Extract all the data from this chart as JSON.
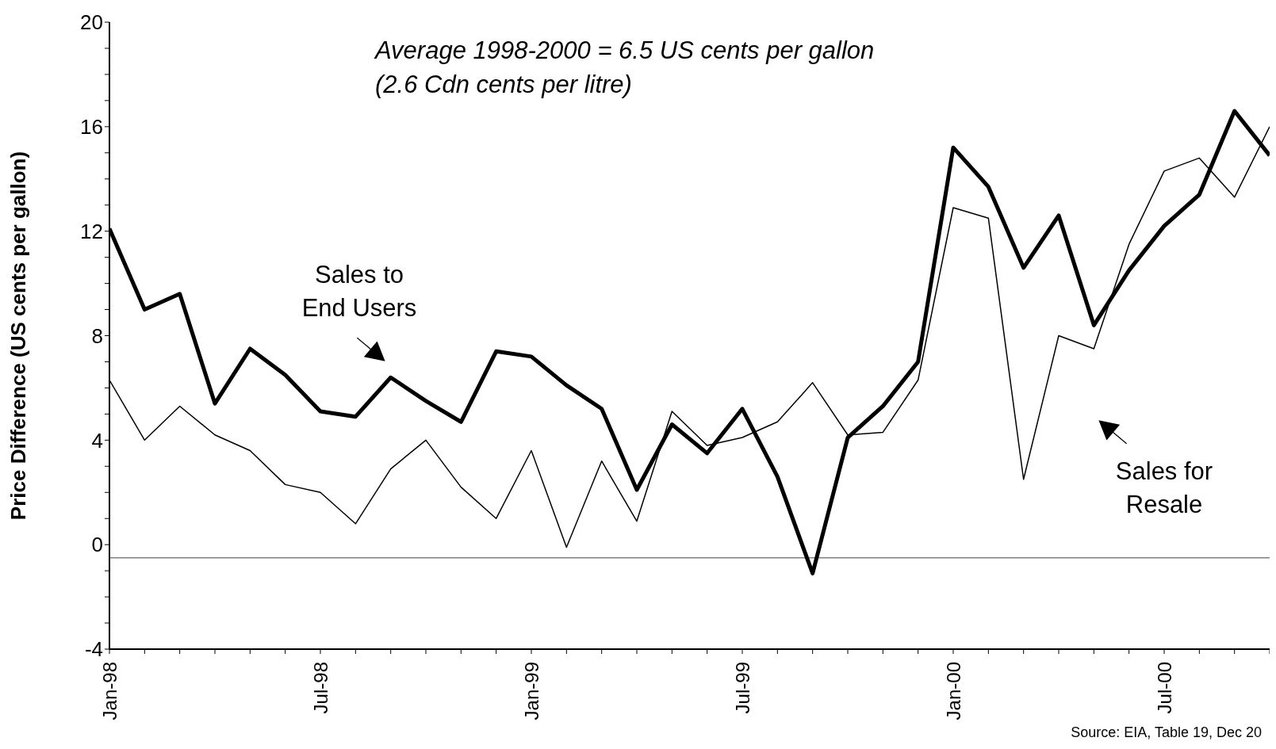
{
  "chart_data": {
    "type": "line",
    "ylabel": "Price Difference (US cents per gallon)",
    "categories": [
      "Jan-98",
      null,
      null,
      null,
      null,
      null,
      "Jul-98",
      null,
      null,
      null,
      null,
      null,
      "Jan-99",
      null,
      null,
      null,
      null,
      null,
      "Jul-99",
      null,
      null,
      null,
      null,
      null,
      "Jan-00",
      null,
      null,
      null,
      null,
      null,
      "Jul-00",
      null,
      null,
      null
    ],
    "series": [
      {
        "name": "Sales to End Users",
        "color": "#000000",
        "values": [
          12.1,
          9.0,
          9.6,
          5.4,
          7.5,
          6.5,
          5.1,
          4.9,
          6.4,
          5.5,
          4.7,
          7.4,
          7.2,
          6.1,
          5.2,
          2.1,
          4.6,
          3.5,
          5.2,
          2.6,
          -1.1,
          4.1,
          5.3,
          7.0,
          15.2,
          13.7,
          10.6,
          12.6,
          8.4,
          10.5,
          12.2,
          13.4,
          16.6,
          14.9
        ]
      },
      {
        "name": "Sales for Resale",
        "color": "#000000",
        "values": [
          6.3,
          4.0,
          5.3,
          4.2,
          3.6,
          2.3,
          2.0,
          0.8,
          2.9,
          4.0,
          2.2,
          1.0,
          3.6,
          -0.1,
          3.2,
          0.9,
          5.1,
          3.8,
          4.1,
          4.7,
          6.2,
          4.2,
          4.3,
          6.3,
          12.9,
          12.5,
          2.5,
          8.0,
          7.5,
          11.5,
          14.3,
          14.8,
          13.3,
          16.0
        ]
      }
    ],
    "ylim": [
      -4,
      20
    ],
    "yticks": [
      -4,
      {
        "value": -3,
        "label": null
      },
      {
        "value": -2,
        "label": null
      },
      {
        "value": -1,
        "label": null
      },
      0,
      {
        "value": 1,
        "label": null
      },
      {
        "value": 2,
        "label": null
      },
      {
        "value": 3,
        "label": null
      },
      4,
      {
        "value": 5,
        "label": null
      },
      {
        "value": 6,
        "label": null
      },
      {
        "value": 7,
        "label": null
      },
      8,
      {
        "value": 9,
        "label": null
      },
      {
        "value": 10,
        "label": null
      },
      {
        "value": 11,
        "label": null
      },
      12,
      {
        "value": 13,
        "label": null
      },
      {
        "value": 14,
        "label": null
      },
      {
        "value": 15,
        "label": null
      },
      16,
      {
        "value": 17,
        "label": null
      },
      {
        "value": 18,
        "label": null
      },
      {
        "value": 19,
        "label": null
      },
      20
    ],
    "ref_lines": [
      {
        "axis": "y",
        "value": -0.5,
        "label": null,
        "color": "#808080"
      }
    ],
    "annotations": [
      "Average 1998-2000 = 6.5 US cents per gallon",
      "(2.6 Cdn cents per litre)",
      "Source: EIA, Table 19, Dec 20"
    ],
    "marker": "none",
    "line_style": "solid"
  }
}
